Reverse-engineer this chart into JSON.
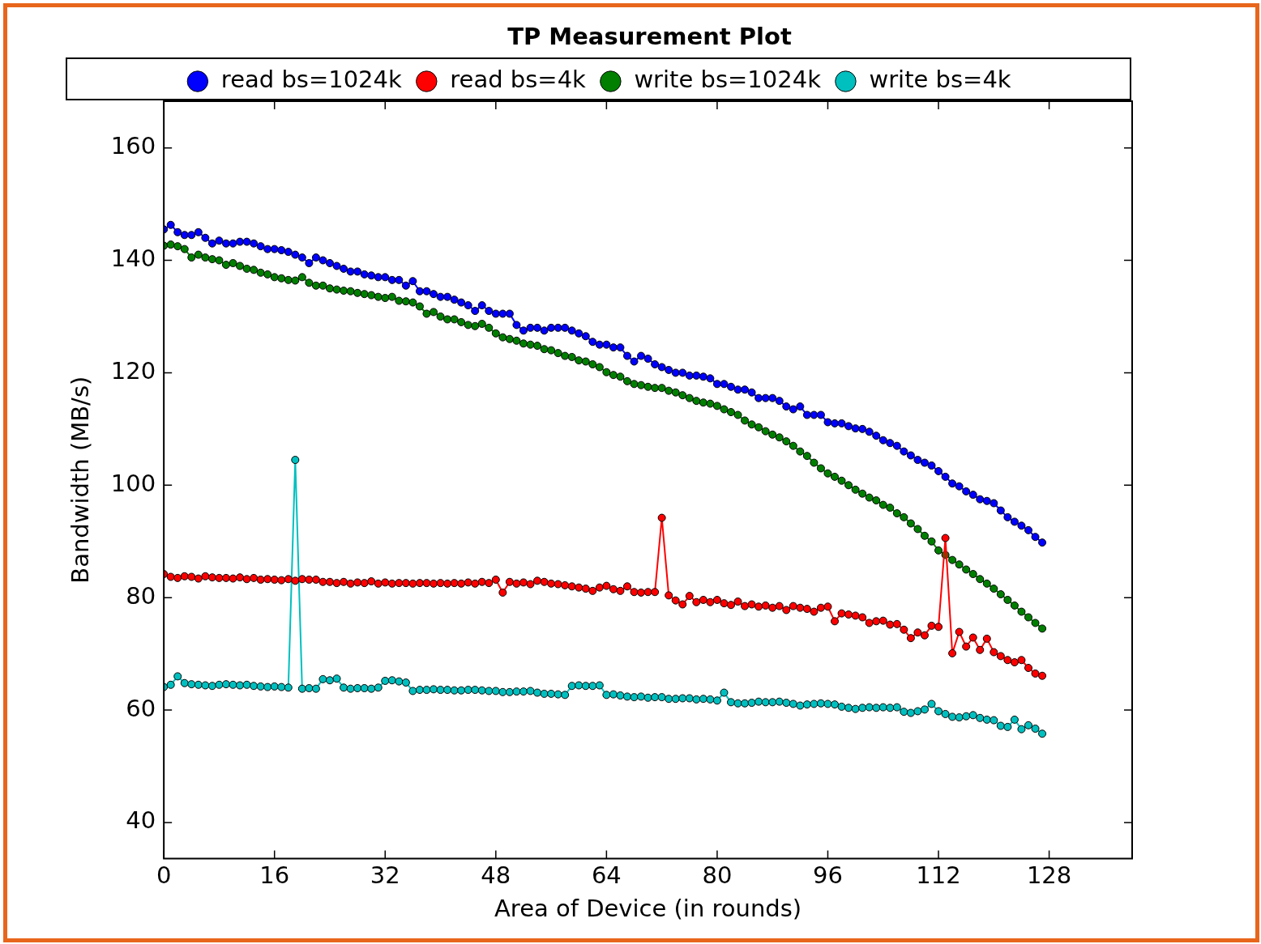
{
  "chart_data": {
    "type": "line",
    "title": "TP Measurement Plot",
    "xlabel": "Area of Device (in rounds)",
    "ylabel": "Bandwidth (MB/s)",
    "x": [
      0,
      1,
      2,
      3,
      4,
      5,
      6,
      7,
      8,
      9,
      10,
      11,
      12,
      13,
      14,
      15,
      16,
      17,
      18,
      19,
      20,
      21,
      22,
      23,
      24,
      25,
      26,
      27,
      28,
      29,
      30,
      31,
      32,
      33,
      34,
      35,
      36,
      37,
      38,
      39,
      40,
      41,
      42,
      43,
      44,
      45,
      46,
      47,
      48,
      49,
      50,
      51,
      52,
      53,
      54,
      55,
      56,
      57,
      58,
      59,
      60,
      61,
      62,
      63,
      64,
      65,
      66,
      67,
      68,
      69,
      70,
      71,
      72,
      73,
      74,
      75,
      76,
      77,
      78,
      79,
      80,
      81,
      82,
      83,
      84,
      85,
      86,
      87,
      88,
      89,
      90,
      91,
      92,
      93,
      94,
      95,
      96,
      97,
      98,
      99,
      100,
      101,
      102,
      103,
      104,
      105,
      106,
      107,
      108,
      109,
      110,
      111,
      112,
      113,
      114,
      115,
      116,
      117,
      118,
      119,
      120,
      121,
      122,
      123,
      124,
      125,
      126,
      127
    ],
    "series": [
      {
        "name": "read bs=1024k",
        "color": "#0000ff",
        "values": [
          145.5,
          146.3,
          145,
          144.5,
          144.5,
          145,
          144,
          143,
          143.5,
          143,
          143,
          143.3,
          143.3,
          143,
          142.5,
          142,
          142,
          141.8,
          141.5,
          141,
          140.5,
          139.5,
          140.5,
          140,
          139.5,
          139,
          138.5,
          138,
          138,
          137.5,
          137.3,
          137,
          137,
          136.5,
          136.5,
          135.5,
          136.3,
          134.5,
          134.5,
          134,
          133.5,
          133.5,
          133,
          132.5,
          132,
          131,
          132,
          131,
          130.5,
          130.5,
          130.5,
          128.5,
          127.5,
          128,
          128,
          127.5,
          128,
          128,
          128,
          127.5,
          127,
          126.5,
          125.5,
          125,
          125,
          124.5,
          124.5,
          123,
          122,
          123,
          122.5,
          121.5,
          121,
          120.5,
          120,
          120,
          119.5,
          119.5,
          119.3,
          119,
          118,
          118,
          117.5,
          117,
          117,
          116.5,
          115.5,
          115.5,
          115.5,
          115,
          114,
          113.5,
          114,
          112.5,
          112.5,
          112.5,
          111.2,
          111,
          111,
          110.5,
          110.1,
          110,
          109.5,
          108.8,
          108,
          107.5,
          107,
          106,
          105.3,
          104.5,
          104,
          103.5,
          102.5,
          101.5,
          100.3,
          99.8,
          98.9,
          98.3,
          97.5,
          97.2,
          96.8,
          95.5,
          94.3,
          93.5,
          92.8,
          92,
          90.8,
          89.8
        ]
      },
      {
        "name": "read bs=4k",
        "color": "#ff0000",
        "values": [
          84.2,
          83.7,
          83.5,
          83.8,
          83.7,
          83.4,
          83.8,
          83.6,
          83.5,
          83.5,
          83.4,
          83.6,
          83.3,
          83.5,
          83.2,
          83.3,
          83.2,
          83.1,
          83.3,
          83,
          83.3,
          83.2,
          83.2,
          82.8,
          82.8,
          82.6,
          82.8,
          82.5,
          82.7,
          82.6,
          82.9,
          82.5,
          82.7,
          82.5,
          82.6,
          82.6,
          82.5,
          82.6,
          82.6,
          82.5,
          82.6,
          82.5,
          82.6,
          82.5,
          82.7,
          82.5,
          82.8,
          82.6,
          83.2,
          80.9,
          82.8,
          82.5,
          82.7,
          82.4,
          83,
          82.8,
          82.5,
          82.4,
          82.2,
          82,
          81.8,
          81.6,
          81.2,
          81.8,
          82.1,
          81.5,
          81.2,
          82,
          81,
          80.9,
          81,
          81,
          94.2,
          80.4,
          79.5,
          78.8,
          80.3,
          79.2,
          79.6,
          79.2,
          79.6,
          79,
          78.7,
          79.3,
          78.5,
          78.8,
          78.4,
          78.6,
          78.2,
          78.5,
          77.8,
          78.5,
          78.2,
          78,
          77.5,
          78.2,
          78.4,
          75.8,
          77.2,
          77,
          76.8,
          76.5,
          75.5,
          75.8,
          75.9,
          75.2,
          75.3,
          74.3,
          72.8,
          73.8,
          73.3,
          75,
          74.8,
          90.6,
          70.1,
          73.9,
          71.3,
          72.9,
          70.7,
          72.7,
          70.3,
          69.6,
          68.9,
          68.5,
          68.9,
          67.5,
          66.5,
          66.1
        ]
      },
      {
        "name": "write bs=1024k",
        "color": "#007f00",
        "values": [
          142.6,
          142.8,
          142.5,
          142,
          140.5,
          141,
          140.5,
          140.2,
          140,
          139.2,
          139.5,
          139,
          138.5,
          138.3,
          137.8,
          137.5,
          137,
          136.8,
          136.5,
          136.4,
          137,
          136,
          135.5,
          135.5,
          135,
          134.8,
          134.6,
          134.5,
          134.2,
          134,
          133.8,
          133.5,
          133.3,
          133.5,
          132.8,
          132.7,
          132.5,
          131.8,
          130.5,
          130.8,
          130,
          129.5,
          129.5,
          129,
          128.5,
          128.3,
          128.7,
          128,
          127,
          126.3,
          126,
          125.7,
          125.2,
          125,
          124.8,
          124.2,
          124,
          123.5,
          123,
          122.8,
          122.2,
          122,
          121.5,
          121,
          120.1,
          119.6,
          119.3,
          118.5,
          118,
          117.8,
          117.5,
          117.3,
          117.3,
          116.8,
          116.5,
          116,
          115.5,
          115,
          114.7,
          114.5,
          114.1,
          113.5,
          113,
          112.5,
          111.5,
          110.8,
          110.3,
          109.6,
          109,
          108.5,
          107.8,
          107,
          106,
          105.2,
          104,
          103,
          102.1,
          101.5,
          100.8,
          100,
          99.2,
          98.5,
          97.8,
          97.3,
          96.5,
          96,
          95,
          94.3,
          93.2,
          92.2,
          91,
          90,
          88.4,
          87.6,
          86.7,
          85.9,
          85,
          84.2,
          83.3,
          82.5,
          81.6,
          80.6,
          79.6,
          78.6,
          77.5,
          76.5,
          75.5,
          74.5
        ]
      },
      {
        "name": "write bs=4k",
        "color": "#00bfbf",
        "values": [
          64.1,
          64.5,
          66,
          64.8,
          64.6,
          64.5,
          64.4,
          64.3,
          64.5,
          64.6,
          64.5,
          64.4,
          64.5,
          64.3,
          64.2,
          64.1,
          64.2,
          64.1,
          64,
          104.5,
          63.8,
          63.9,
          63.8,
          65.5,
          65.3,
          65.6,
          64,
          63.8,
          63.9,
          63.9,
          63.8,
          64,
          65.2,
          65.3,
          65.1,
          64.9,
          63.4,
          63.6,
          63.6,
          63.7,
          63.6,
          63.6,
          63.5,
          63.5,
          63.6,
          63.6,
          63.5,
          63.4,
          63.4,
          63.2,
          63.2,
          63.3,
          63.3,
          63.4,
          63.1,
          62.9,
          62.9,
          62.8,
          62.7,
          64.3,
          64.4,
          64.3,
          64.3,
          64.4,
          62.7,
          62.8,
          62.6,
          62.4,
          62.3,
          62.4,
          62.2,
          62.3,
          62.3,
          62,
          62,
          62.1,
          62.1,
          61.9,
          62,
          61.9,
          61.7,
          63.1,
          61.4,
          61.2,
          61.2,
          61.3,
          61.5,
          61.4,
          61.4,
          61.5,
          61.3,
          61.1,
          60.8,
          61,
          61.1,
          61.2,
          61.1,
          61,
          60.6,
          60.4,
          60.2,
          60.4,
          60.5,
          60.4,
          60.5,
          60.4,
          60.5,
          59.7,
          59.5,
          59.8,
          60.1,
          61.1,
          59.8,
          59.3,
          58.8,
          58.7,
          58.9,
          59.1,
          58.6,
          58.3,
          58.2,
          57.2,
          57,
          58.3,
          56.6,
          57.3,
          56.7,
          55.8
        ]
      }
    ],
    "xlim": [
      0,
      140
    ],
    "xticks": [
      0,
      16,
      32,
      48,
      64,
      80,
      96,
      112,
      128
    ],
    "ylim": [
      33.6,
      168.3
    ],
    "yticks": [
      40,
      60,
      80,
      100,
      120,
      140,
      160
    ],
    "grid": false,
    "legend": "top",
    "marker": "circle",
    "line_style": "solid"
  }
}
